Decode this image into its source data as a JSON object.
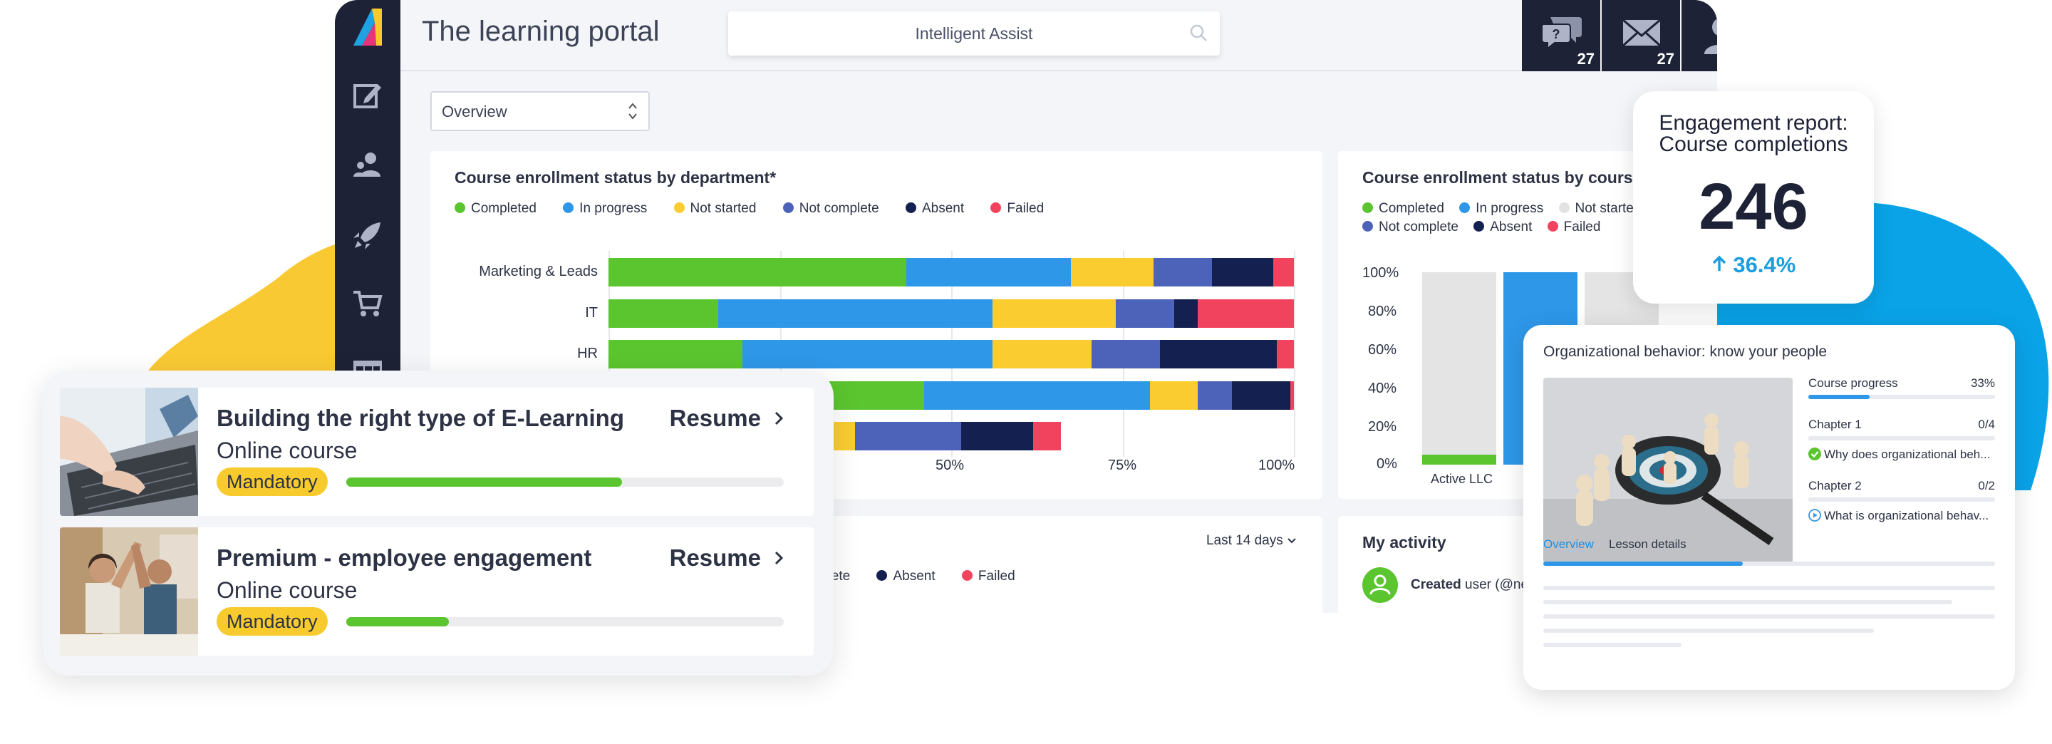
{
  "portal": {
    "title": "The learning portal",
    "search_label": "Intelligent Assist",
    "chat_count": "27",
    "mail_count": "27",
    "view_select": "Overview"
  },
  "sidebar_icons": [
    "edit-icon",
    "users-icon",
    "rocket-icon",
    "cart-icon",
    "table-icon"
  ],
  "dept_chart": {
    "title": "Course enrollment status by department*",
    "legend": [
      "Completed",
      "In progress",
      "Not started",
      "Not complete",
      "Absent",
      "Failed"
    ],
    "colors": [
      "#5bc52f",
      "#2e97e8",
      "#fbcc30",
      "#4d63b9",
      "#14204f",
      "#f2435e"
    ],
    "x_ticks": [
      "50%",
      "75%",
      "100%"
    ]
  },
  "chart_data": [
    {
      "type": "bar",
      "title": "Course enrollment status by department*",
      "orientation": "horizontal",
      "stacked": true,
      "categories": [
        "Marketing & Leads",
        "IT",
        "HR",
        "",
        ""
      ],
      "series": [
        {
          "name": "Completed",
          "values": [
            43.5,
            16,
            19.5,
            46,
            0
          ]
        },
        {
          "name": "In progress",
          "values": [
            24,
            40,
            36.5,
            33,
            0
          ]
        },
        {
          "name": "Not started",
          "values": [
            12,
            18,
            14.5,
            7,
            36
          ]
        },
        {
          "name": "Not complete",
          "values": [
            8.5,
            8.5,
            10,
            5,
            15.5
          ]
        },
        {
          "name": "Absent",
          "values": [
            9,
            3.5,
            17,
            8.5,
            10.5
          ]
        },
        {
          "name": "Failed",
          "values": [
            3,
            14,
            2.5,
            0.5,
            4
          ]
        }
      ],
      "xlim": [
        0,
        100
      ],
      "grid": true,
      "legend": "top"
    },
    {
      "type": "bar",
      "title": "Course enrollment status by course",
      "categories": [
        "Active LLC"
      ],
      "y_ticks": [
        "100%",
        "80%",
        "60%",
        "40%",
        "20%",
        "0%"
      ],
      "ylim": [
        0,
        100
      ],
      "legend": "top"
    }
  ],
  "course_chart": {
    "title": "Course enrollment status by course",
    "legend": [
      "Completed",
      "In progress",
      "Not started",
      "Not complete",
      "Absent",
      "Failed"
    ],
    "y_ticks": [
      "100%",
      "80%",
      "60%",
      "40%",
      "20%",
      "0%"
    ],
    "x_label": "Active LLC"
  },
  "lower_card": {
    "range": "Last 14 days",
    "legend_partial": [
      "plete",
      "Absent",
      "Failed"
    ]
  },
  "activity": {
    "title": "My activity",
    "entry_bold": "Created",
    "entry_rest": " user (@new"
  },
  "courses": [
    {
      "name": "Building the right type of E-Learning",
      "type": "Online course",
      "tag": "Mandatory",
      "action": "Resume",
      "progress": 0.63
    },
    {
      "name": "Premium - employee engagement",
      "type": "Online course",
      "tag": "Mandatory",
      "action": "Resume",
      "progress": 0.235
    }
  ],
  "engagement": {
    "title_line1": "Engagement report:",
    "title_line2": "Course completions",
    "value": "246",
    "change": "36.4%"
  },
  "org": {
    "title": "Organizational behavior: know your people",
    "progress_label": "Course progress",
    "progress_value": "33%",
    "progress": 0.33,
    "chapter1": "Chapter 1",
    "chapter1_count": "0/4",
    "chapter1_item": "Why does organizational beh...",
    "chapter2": "Chapter 2",
    "chapter2_count": "0/2",
    "chapter2_item": "What is organizational behav...",
    "tab_overview": "Overview",
    "tab_details": "Lesson details"
  }
}
